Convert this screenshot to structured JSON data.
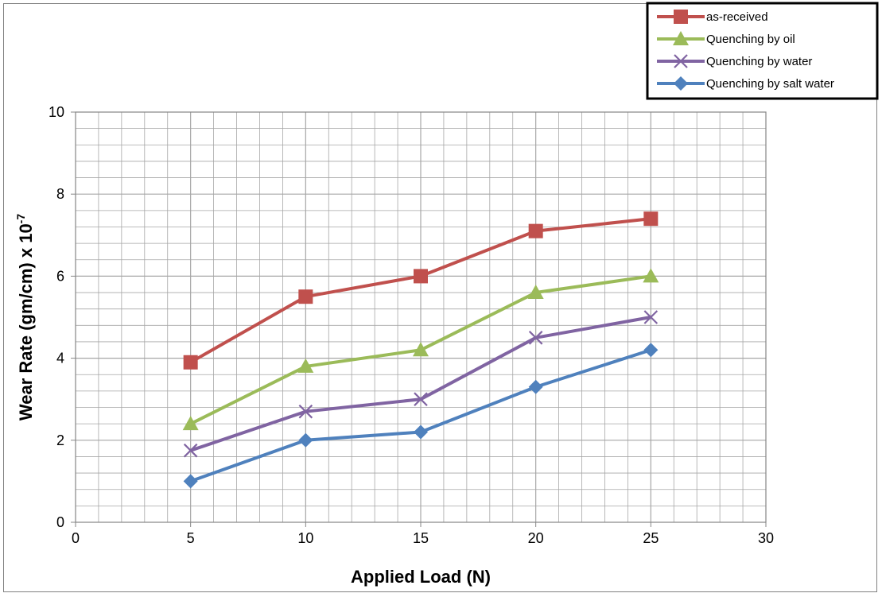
{
  "chart_data": {
    "type": "line",
    "x": [
      5,
      10,
      15,
      20,
      25
    ],
    "xlabel": "Applied Load (N)",
    "ylabel_main": "Wear Rate (gm/cm) x 10",
    "ylabel_exponent": "-7",
    "xlim": [
      0,
      30
    ],
    "ylim": [
      0,
      10
    ],
    "xticks": [
      "0",
      "5",
      "10",
      "15",
      "20",
      "25",
      "30"
    ],
    "yticks": [
      "0",
      "2",
      "4",
      "6",
      "8",
      "10"
    ],
    "grid": true,
    "legend_position": "top-right",
    "series": [
      {
        "name": "as-received",
        "values": [
          3.9,
          5.5,
          6.0,
          7.1,
          7.4
        ],
        "color": "#C0504D",
        "marker": "square"
      },
      {
        "name": "Quenching by oil",
        "values": [
          2.4,
          3.8,
          4.2,
          5.6,
          6.0
        ],
        "color": "#9BBB59",
        "marker": "triangle"
      },
      {
        "name": "Quenching by water",
        "values": [
          1.75,
          2.7,
          3.0,
          4.5,
          5.0
        ],
        "color": "#8064A2",
        "marker": "x"
      },
      {
        "name": "Quenching by salt water",
        "values": [
          1.0,
          2.0,
          2.2,
          3.3,
          4.2
        ],
        "color": "#4F81BD",
        "marker": "diamond"
      }
    ]
  }
}
